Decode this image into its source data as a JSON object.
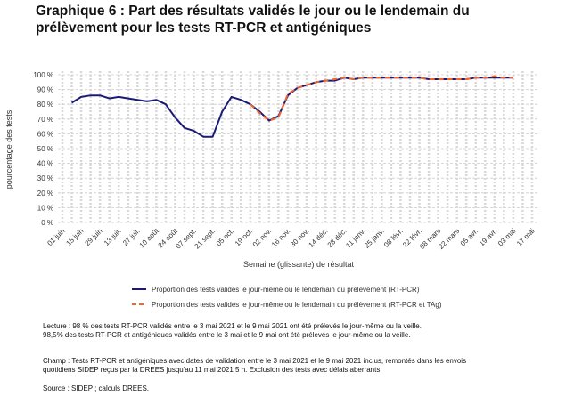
{
  "chart_data": {
    "type": "line",
    "title": [
      "Graphique 6 : Part des résultats validés le jour ou le lendemain du",
      "prélèvement pour les tests RT-PCR et antigéniques"
    ],
    "xlabel": "Semaine (glissante) de résultat",
    "ylabel": "pourcentage des tests",
    "categories": [
      "01 juin",
      null,
      "15 juin",
      null,
      "29 juin",
      null,
      "13 juil.",
      null,
      "27 juil.",
      null,
      "10 août",
      null,
      "24 août",
      null,
      "07 sept.",
      null,
      "21 sept.",
      null,
      "05 oct.",
      null,
      "19 oct.",
      null,
      "02 nov.",
      null,
      "16 nov.",
      null,
      "30 nov.",
      null,
      "14 déc.",
      null,
      "28 déc.",
      null,
      "11 janv.",
      null,
      "25 janv.",
      null,
      "08 févr.",
      null,
      "22 févr.",
      null,
      "08 mars",
      null,
      "22 mars",
      null,
      "05 avr.",
      null,
      "19 avr.",
      null,
      "03 mai",
      null,
      "17 mai"
    ],
    "series": [
      {
        "name": "Proportion des tests validés le jour-même ou le lendemain du prélèvement (RT-PCR)",
        "color": "#1a1a75",
        "dash": false,
        "values": [
          null,
          81,
          85,
          86,
          86,
          84,
          85,
          84,
          83,
          82,
          83,
          80,
          71,
          64,
          62,
          58,
          58,
          75,
          85,
          83,
          80,
          75,
          69,
          72,
          86,
          91,
          93,
          95,
          96,
          96,
          98,
          97,
          98,
          98,
          98,
          98,
          98,
          98,
          98,
          97,
          97,
          97,
          97,
          97,
          98,
          98,
          98,
          98,
          98,
          null,
          null
        ]
      },
      {
        "name": "Proportion des tests validés le jour-même ou le lendemain du prélèvement (RT-PCR et TAg)",
        "color": "#f26430",
        "dash": true,
        "values": [
          null,
          null,
          null,
          null,
          null,
          null,
          null,
          null,
          null,
          null,
          null,
          null,
          null,
          null,
          null,
          null,
          null,
          null,
          null,
          null,
          80,
          74,
          69,
          71,
          87,
          91,
          93,
          95,
          96,
          97,
          98,
          97,
          98,
          98,
          98,
          98,
          98,
          98,
          98,
          97,
          97,
          97,
          97,
          97,
          98,
          98,
          99,
          98,
          98,
          null,
          null
        ]
      }
    ],
    "ylim": [
      0,
      100
    ],
    "yticks": [
      {
        "value": 0,
        "label": "0 %"
      },
      {
        "value": 10,
        "label": "10 %"
      },
      {
        "value": 20,
        "label": "20 %"
      },
      {
        "value": 30,
        "label": "30 %"
      },
      {
        "value": 40,
        "label": "40 %"
      },
      {
        "value": 50,
        "label": "50 %"
      },
      {
        "value": 60,
        "label": "60 %"
      },
      {
        "value": 70,
        "label": "70 %"
      },
      {
        "value": 80,
        "label": "80 %"
      },
      {
        "value": 90,
        "label": "90 %"
      },
      {
        "value": 100,
        "label": "100 %"
      }
    ],
    "grid": true,
    "notes": [
      "Lecture : 98 % des tests RT-PCR validés entre le 3 mai 2021 et le 9 mai 2021 ont été prélevés le jour-même ou la veille.",
      "98,5% des tests RT-PCR et antigéniques validés entre le 3 mai et le 9 mai ont été prélevés le jour-même ou la veille.",
      "Champ : Tests RT-PCR et antigéniques avec dates de validation entre le 3 mai 2021 et le 9 mai 2021 inclus, remontés dans les envois",
      "quotidiens SIDEP reçus par la DREES jusqu'au 11 mai 2021 5 h. Exclusion des tests avec délais aberrants.",
      "Source : SIDEP ; calculs DREES."
    ]
  }
}
